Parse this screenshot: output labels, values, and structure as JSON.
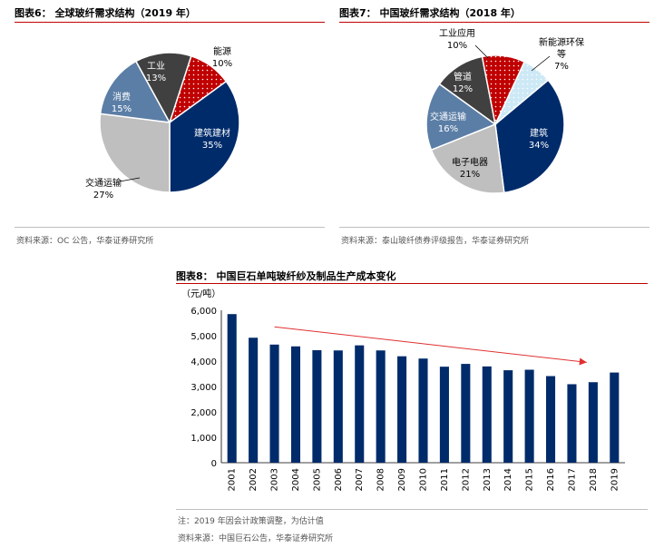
{
  "figures": {
    "fig6": {
      "title": "图表6：  全球玻纤需求结构（2019 年）",
      "source": "资料来源：OC 公告，华泰证券研究所",
      "chart_data": {
        "type": "pie",
        "slices": [
          {
            "label": "能源",
            "value": 10,
            "value_text": "10%",
            "color": "#c00000",
            "pattern": "dots"
          },
          {
            "label": "建筑建材",
            "value": 35,
            "value_text": "35%",
            "color": "#002b6b"
          },
          {
            "label": "交通运输",
            "value": 27,
            "value_text": "27%",
            "color": "#bfbfbf"
          },
          {
            "label": "消费",
            "value": 15,
            "value_text": "15%",
            "color": "#5b7ea6"
          },
          {
            "label": "工业",
            "value": 13,
            "value_text": "13%",
            "color": "#404040"
          }
        ]
      }
    },
    "fig7": {
      "title": "图表7：  中国玻纤需求结构（2018 年）",
      "source": "资料来源：泰山玻纤债券评级报告，华泰证券研究所",
      "chart_data": {
        "type": "pie",
        "slices": [
          {
            "label": "新能源环保等",
            "label_lines": [
              "新能源环保",
              "等"
            ],
            "value": 7,
            "value_text": "7%",
            "color": "#cce8f4",
            "pattern": "dots-light"
          },
          {
            "label": "建筑",
            "value": 34,
            "value_text": "34%",
            "color": "#002b6b"
          },
          {
            "label": "电子电器",
            "value": 21,
            "value_text": "21%",
            "color": "#bfbfbf"
          },
          {
            "label": "交通运输",
            "value": 16,
            "value_text": "16%",
            "color": "#5b7ea6"
          },
          {
            "label": "管道",
            "value": 12,
            "value_text": "12%",
            "color": "#404040"
          },
          {
            "label": "工业应用",
            "value": 10,
            "value_text": "10%",
            "color": "#c00000",
            "pattern": "dots"
          }
        ]
      }
    },
    "fig8": {
      "title": "图表8：  中国巨石单吨玻纤纱及制品生产成本变化",
      "note": "注：2019 年因会计政策调整，为估计值",
      "source": "资料来源：中国巨石公告，华泰证券研究所",
      "chart_data": {
        "type": "bar",
        "unit": "（元/吨）",
        "categories": [
          "2001",
          "2002",
          "2003",
          "2004",
          "2005",
          "2006",
          "2007",
          "2008",
          "2009",
          "2010",
          "2011",
          "2012",
          "2013",
          "2014",
          "2015",
          "2016",
          "2017",
          "2018",
          "2019"
        ],
        "values": [
          5850,
          4920,
          4650,
          4580,
          4430,
          4420,
          4620,
          4420,
          4190,
          4100,
          3780,
          3890,
          3790,
          3640,
          3660,
          3410,
          3090,
          3170,
          3550
        ],
        "ylim": [
          0,
          6000
        ],
        "yticks": [
          "0",
          "1,000",
          "2,000",
          "3,000",
          "4,000",
          "5,000",
          "6,000"
        ],
        "bar_color": "#002b6b",
        "trend_arrow": true,
        "trend_color": "#e03030"
      }
    }
  }
}
